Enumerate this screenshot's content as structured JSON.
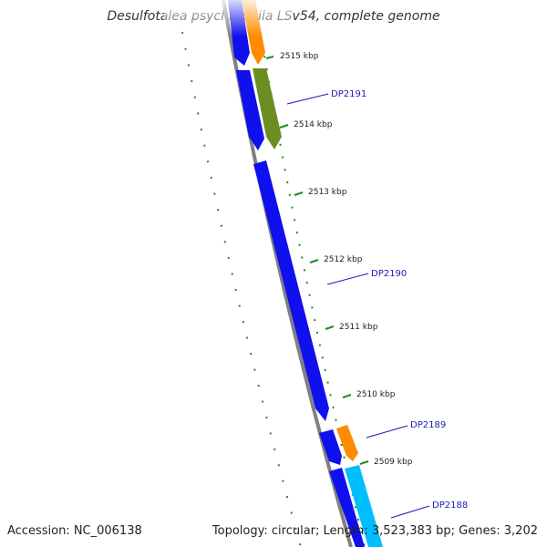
{
  "title": "Desulfotalea psychrophila LSv54, complete genome",
  "accession": "Accession: NC_006138",
  "summary": "Topology: circular; Length: 3,523,383 bp; Genes: 3,202",
  "kbp_labels": [
    "2515 kbp",
    "2514 kbp",
    "2513 kbp",
    "2512 kbp",
    "2511 kbp",
    "2510 kbp",
    "2509 kbp"
  ],
  "gene_labels": [
    "DP2191",
    "DP2190",
    "DP2189",
    "DP2188"
  ],
  "colors": {
    "blue_cds": "#1010ee",
    "orange_cds": "#ff8c00",
    "olive_cds": "#6b8e23",
    "cyan_cds": "#00bfff",
    "gc_dots": "#1e8c1e",
    "backbone": "#808080",
    "label_blue": "#1a1ab8"
  }
}
